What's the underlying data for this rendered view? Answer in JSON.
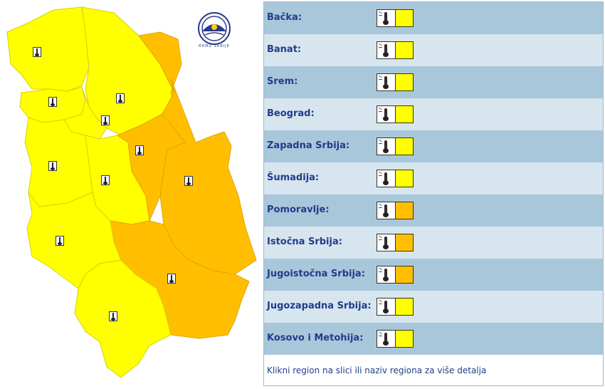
{
  "colors": {
    "yellow": "#ffff00",
    "orange": "#ffbf00",
    "row_dark": "#a9c7db",
    "row_light": "#d6e5ee",
    "label": "#1f3d8a"
  },
  "logo": {
    "text": "RHMZ SRBIJE",
    "icon": "rhmz-logo-icon"
  },
  "regions": [
    {
      "label": "Bačka:",
      "warning": "yellow"
    },
    {
      "label": "Banat:",
      "warning": "yellow"
    },
    {
      "label": "Srem:",
      "warning": "yellow"
    },
    {
      "label": "Beograd:",
      "warning": "yellow"
    },
    {
      "label": "Zapadna Srbija:",
      "warning": "yellow"
    },
    {
      "label": "Šumadija:",
      "warning": "yellow"
    },
    {
      "label": "Pomoravlje:",
      "warning": "orange"
    },
    {
      "label": "Istočna Srbija:",
      "warning": "orange"
    },
    {
      "label": "Jugoistočna Srbija:",
      "warning": "orange"
    },
    {
      "label": "Jugozapadna Srbija:",
      "warning": "yellow"
    },
    {
      "label": "Kosovo i Metohija:",
      "warning": "yellow"
    }
  ],
  "footer": {
    "note": "Klikni region na slici ili naziv regiona za više detalja"
  }
}
